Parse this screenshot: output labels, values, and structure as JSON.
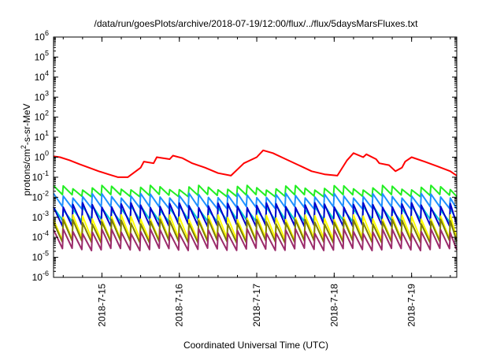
{
  "chart_data": {
    "type": "line",
    "title": "/data/run/goesPlots/archive/2018-07-19/12:00/flux/../flux/5daysMarsFluxes.txt",
    "xlabel": "Coordinated Universal Time (UTC)",
    "ylabel_prefix": "protons/cm",
    "ylabel_sup": "2",
    "ylabel_suffix": "-s-sr-MeV",
    "yscale": "log",
    "ylim": [
      1e-06,
      1000000.0
    ],
    "xlim": [
      "2018-07-14T09:00",
      "2018-07-19T14:00"
    ],
    "y_ticks": [
      {
        "base": "10",
        "exp": "-6",
        "value": 1e-06
      },
      {
        "base": "10",
        "exp": "-5",
        "value": 1e-05
      },
      {
        "base": "10",
        "exp": "-4",
        "value": 0.0001
      },
      {
        "base": "10",
        "exp": "-3",
        "value": 0.001
      },
      {
        "base": "10",
        "exp": "-2",
        "value": 0.01
      },
      {
        "base": "10",
        "exp": "-1",
        "value": 0.1
      },
      {
        "base": "10",
        "exp": "0",
        "value": 1
      },
      {
        "base": "10",
        "exp": "1",
        "value": 10
      },
      {
        "base": "10",
        "exp": "2",
        "value": 100
      },
      {
        "base": "10",
        "exp": "3",
        "value": 1000
      },
      {
        "base": "10",
        "exp": "4",
        "value": 10000
      },
      {
        "base": "10",
        "exp": "5",
        "value": 100000
      },
      {
        "base": "10",
        "exp": "6",
        "value": 1000000
      }
    ],
    "x_ticks": [
      {
        "label": "2018-7-15",
        "date": "2018-07-15T00:00"
      },
      {
        "label": "2018-7-16",
        "date": "2018-07-16T00:00"
      },
      {
        "label": "2018-7-17",
        "date": "2018-07-17T00:00"
      },
      {
        "label": "2018-7-18",
        "date": "2018-07-18T00:00"
      },
      {
        "label": "2018-7-19",
        "date": "2018-07-19T00:00"
      }
    ],
    "grid": false,
    "legend": "none",
    "series": [
      {
        "color": "#ff0000",
        "pattern": "irregular",
        "x": [
          "2018-07-14T09:00",
          "2018-07-14T11:00",
          "2018-07-14T14:00",
          "2018-07-14T17:00",
          "2018-07-14T20:00",
          "2018-07-14T23:00",
          "2018-07-15T02:00",
          "2018-07-15T05:00",
          "2018-07-15T08:00",
          "2018-07-15T12:00",
          "2018-07-15T13:00",
          "2018-07-15T16:00",
          "2018-07-15T17:00",
          "2018-07-15T21:00",
          "2018-07-15T22:00",
          "2018-07-16T01:00",
          "2018-07-16T04:00",
          "2018-07-16T08:00",
          "2018-07-16T12:00",
          "2018-07-16T16:00",
          "2018-07-16T20:00",
          "2018-07-17T00:00",
          "2018-07-17T02:00",
          "2018-07-17T05:00",
          "2018-07-17T09:00",
          "2018-07-17T13:00",
          "2018-07-17T17:00",
          "2018-07-17T21:00",
          "2018-07-18T01:00",
          "2018-07-18T04:00",
          "2018-07-18T06:00",
          "2018-07-18T09:00",
          "2018-07-18T10:00",
          "2018-07-18T13:00",
          "2018-07-18T14:00",
          "2018-07-18T17:00",
          "2018-07-18T19:00",
          "2018-07-18T21:00",
          "2018-07-18T22:00",
          "2018-07-19T00:00",
          "2018-07-19T04:00",
          "2018-07-19T08:00",
          "2018-07-19T12:00",
          "2018-07-19T14:00"
        ],
        "y": [
          1.1,
          1.0,
          0.7,
          0.45,
          0.3,
          0.2,
          0.14,
          0.1,
          0.1,
          0.3,
          0.6,
          0.5,
          1.0,
          0.8,
          1.2,
          0.9,
          0.5,
          0.3,
          0.16,
          0.12,
          0.5,
          1.0,
          2.2,
          1.6,
          0.8,
          0.4,
          0.2,
          0.14,
          0.12,
          0.7,
          1.6,
          1.0,
          1.4,
          0.8,
          0.5,
          0.4,
          0.2,
          0.3,
          0.6,
          1.0,
          0.6,
          0.35,
          0.2,
          0.12
        ]
      },
      {
        "color": "#22ee22",
        "pattern": "sawtooth",
        "high": 0.03,
        "low": 0.012
      },
      {
        "color": "#1e90ff",
        "pattern": "sawtooth",
        "high": 0.012,
        "low": 0.003
      },
      {
        "color": "#00ced1",
        "pattern": "sawtooth",
        "high": 0.003,
        "low": 0.0007
      },
      {
        "color": "#0000cd",
        "pattern": "sawtooth",
        "high": 0.004,
        "low": 0.0004
      },
      {
        "color": "#ffff00",
        "pattern": "sawtooth",
        "high": 0.001,
        "low": 8e-05
      },
      {
        "color": "#7f7f00",
        "pattern": "sawtooth",
        "high": 0.0006,
        "low": 6e-05
      },
      {
        "color": "#9b2b6b",
        "pattern": "sawtooth",
        "high": 0.0002,
        "low": 2.5e-05
      }
    ]
  }
}
